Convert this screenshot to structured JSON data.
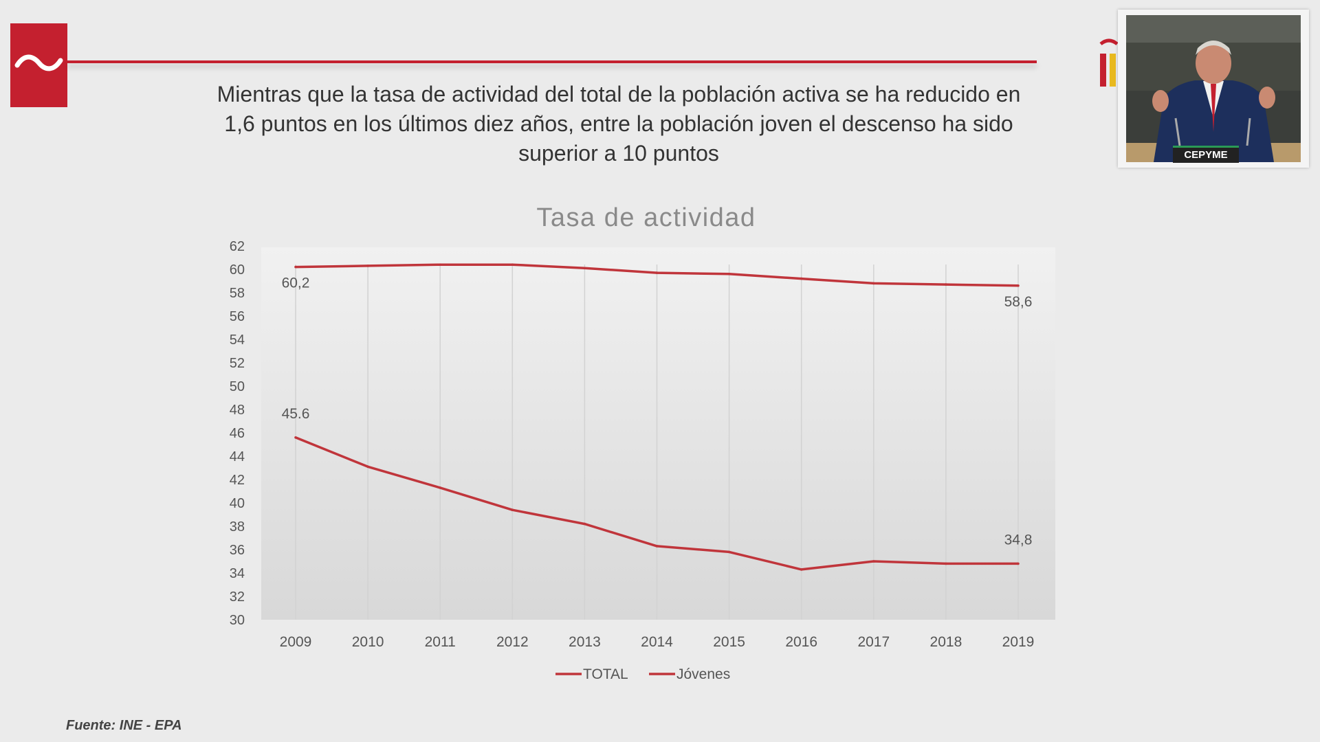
{
  "headline": "Mientras que la tasa de actividad del total de la población activa se ha reducido en 1,6 puntos en los últimos diez años, entre la población joven el descenso ha sido superior a 10 puntos",
  "source": "Fuente: INE - EPA",
  "video": {
    "badge": "CEPYME"
  },
  "icons": {
    "logo": "tilde-logo-icon",
    "side_mark": "partial-logo-icon"
  },
  "colors": {
    "brand": "#c4202f",
    "series_line": "#c0353b",
    "background": "#ebebeb"
  },
  "chart_data": {
    "type": "line",
    "title": "Tasa de actividad",
    "categories": [
      "2009",
      "2010",
      "2011",
      "2012",
      "2013",
      "2014",
      "2015",
      "2016",
      "2017",
      "2018",
      "2019"
    ],
    "ylim": [
      30,
      62
    ],
    "yticks": [
      62,
      60,
      58,
      56,
      54,
      52,
      50,
      48,
      46,
      44,
      42,
      40,
      38,
      36,
      34,
      32,
      30
    ],
    "grid": "vertical",
    "legend_position": "bottom",
    "series": [
      {
        "name": "TOTAL",
        "values": [
          60.2,
          60.3,
          60.4,
          60.4,
          60.1,
          59.7,
          59.6,
          59.2,
          58.8,
          58.7,
          58.6
        ],
        "labels": [
          {
            "index": 0,
            "text": "60,2"
          },
          {
            "index": 10,
            "text": "58,6"
          }
        ]
      },
      {
        "name": "Jóvenes",
        "values": [
          45.6,
          43.1,
          41.3,
          39.4,
          38.2,
          36.3,
          35.8,
          34.3,
          35.0,
          34.8,
          34.8
        ],
        "labels": [
          {
            "index": 0,
            "text": "45.6"
          },
          {
            "index": 10,
            "text": "34,8"
          }
        ]
      }
    ]
  }
}
